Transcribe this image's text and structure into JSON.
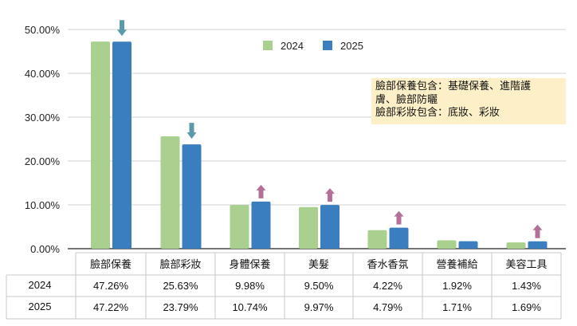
{
  "chart_data": {
    "type": "bar",
    "categories": [
      "臉部保養",
      "臉部彩妝",
      "身體保養",
      "美髮",
      "香水香氛",
      "營養補給",
      "美容工具"
    ],
    "series": [
      {
        "name": "2024",
        "color": "#a9d08e",
        "values": [
          47.26,
          25.63,
          9.98,
          9.5,
          4.22,
          1.92,
          1.43
        ],
        "labels": [
          "47.26%",
          "25.63%",
          "9.98%",
          "9.50%",
          "4.22%",
          "1.92%",
          "1.43%"
        ]
      },
      {
        "name": "2025",
        "color": "#3a7ebf",
        "values": [
          47.22,
          23.79,
          10.74,
          9.97,
          4.79,
          1.71,
          1.69
        ],
        "labels": [
          "47.22%",
          "23.79%",
          "10.74%",
          "9.97%",
          "4.79%",
          "1.71%",
          "1.69%"
        ]
      }
    ],
    "yticks": [
      "0.00%",
      "10.00%",
      "20.00%",
      "30.00%",
      "40.00%",
      "50.00%"
    ],
    "ylim": [
      0,
      50
    ],
    "grid": true,
    "legend": "top-center",
    "trend_arrows": [
      "down",
      "down",
      "up",
      "up",
      "up",
      "none",
      "up"
    ],
    "arrow_colors": {
      "up": "#b5709a",
      "down": "#5b9aa8"
    },
    "notes": [
      "臉部保養包含：基礎保養、進階護",
      "膚、臉部防曬",
      "臉部彩妝包含：底妝、彩妝"
    ]
  }
}
